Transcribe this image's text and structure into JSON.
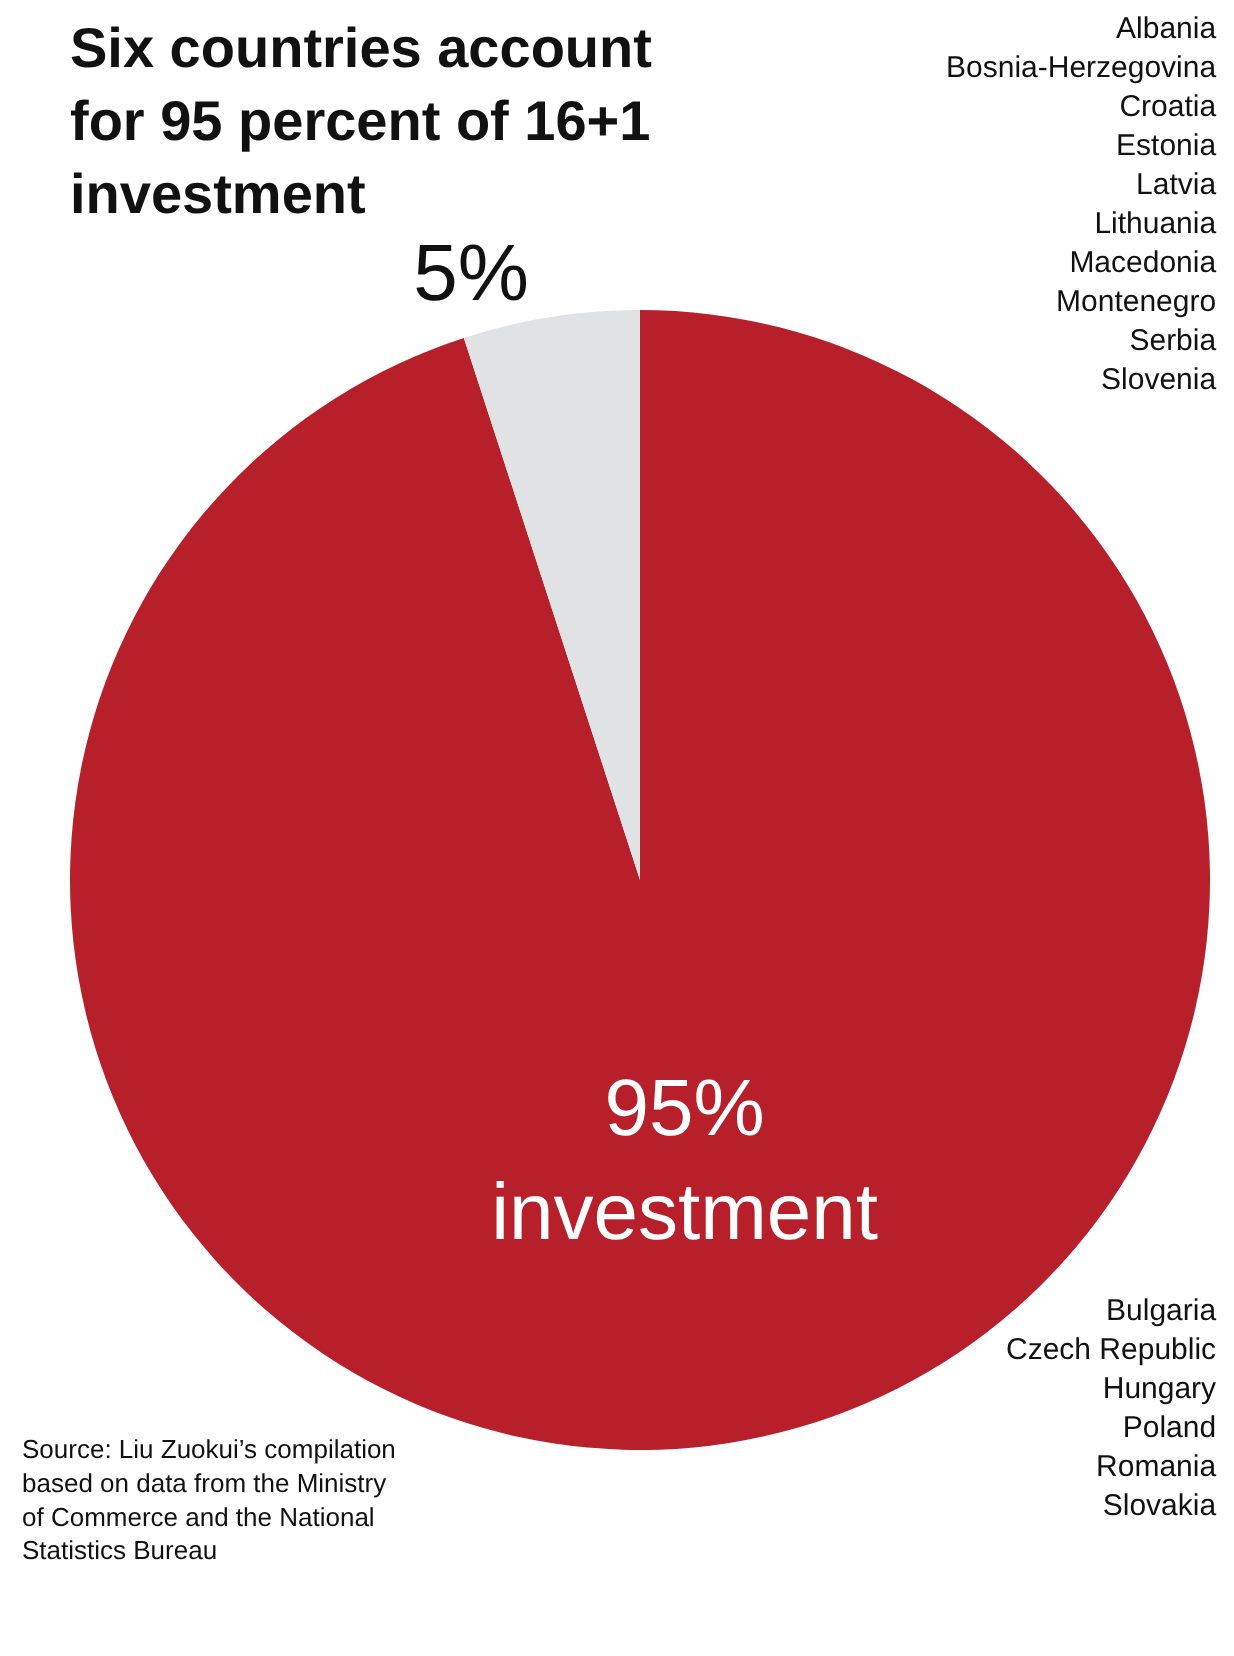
{
  "chart_data": {
    "type": "pie",
    "title": "Six countries account\nfor 95 percent of 16+1\ninvestment",
    "categories": [
      null,
      null
    ],
    "values": [
      95,
      5
    ],
    "colors": [
      "#b71f2a",
      "#e1e2e4"
    ],
    "value_labels": [
      "95%\ninvestment",
      "5%"
    ],
    "legend": false,
    "annotations": [
      "Albania\nBosnia-Herzegovina\nCroatia\nEstonia\nLatvia\nLithuania\nMacedonia\nMontenegro\nSerbia\nSlovenia",
      "Bulgaria\nCzech Republic\nHungary\nPoland\nRomania\nSlovakia",
      "Source: Liu Zuokui’s compilation\nbased on data from the Ministry\nof Commerce and the National\nStatistics Bureau"
    ]
  }
}
